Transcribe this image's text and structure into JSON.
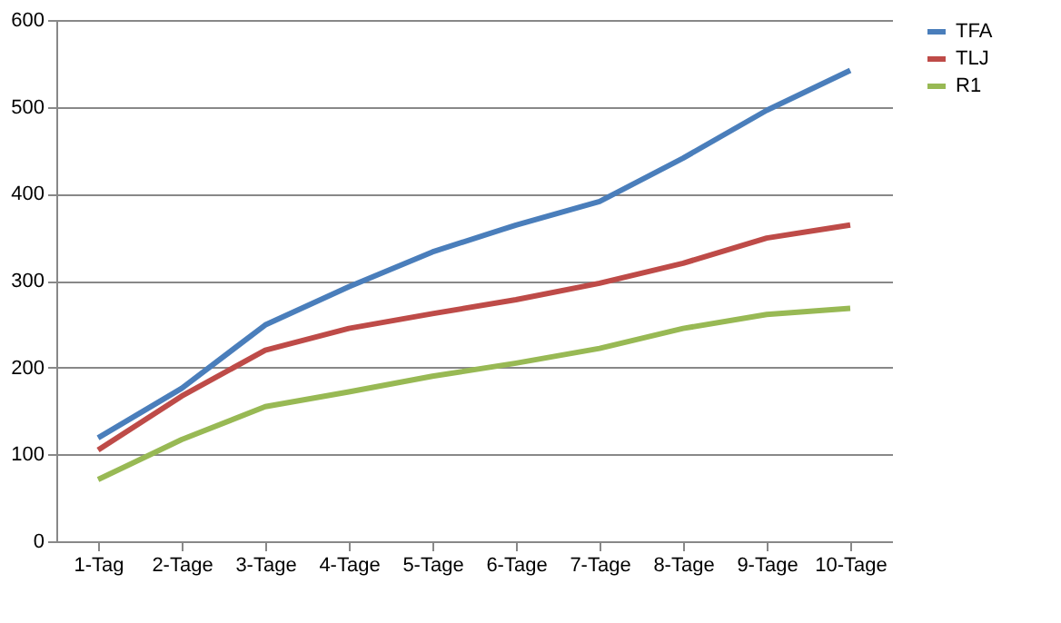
{
  "chart_data": {
    "type": "line",
    "categories": [
      "1-Tag",
      "2-Tage",
      "3-Tage",
      "4-Tage",
      "5-Tage",
      "6-Tage",
      "7-Tage",
      "8-Tage",
      "9-Tage",
      "10-Tage"
    ],
    "series": [
      {
        "name": "TFA",
        "color": "#4a7ebb",
        "values": [
          119,
          176,
          249,
          293,
          333,
          364,
          391,
          441,
          496,
          542
        ]
      },
      {
        "name": "TLJ",
        "color": "#be4b48",
        "values": [
          105,
          167,
          220,
          245,
          262,
          278,
          297,
          320,
          349,
          364
        ]
      },
      {
        "name": "R1",
        "color": "#98b954",
        "values": [
          71,
          117,
          155,
          172,
          190,
          205,
          222,
          245,
          261,
          268
        ]
      }
    ],
    "ylim": [
      0,
      600
    ],
    "yticks": [
      0,
      100,
      200,
      300,
      400,
      500,
      600
    ],
    "grid": "y",
    "legend": "right",
    "marker": "none",
    "line_style": "solid"
  }
}
